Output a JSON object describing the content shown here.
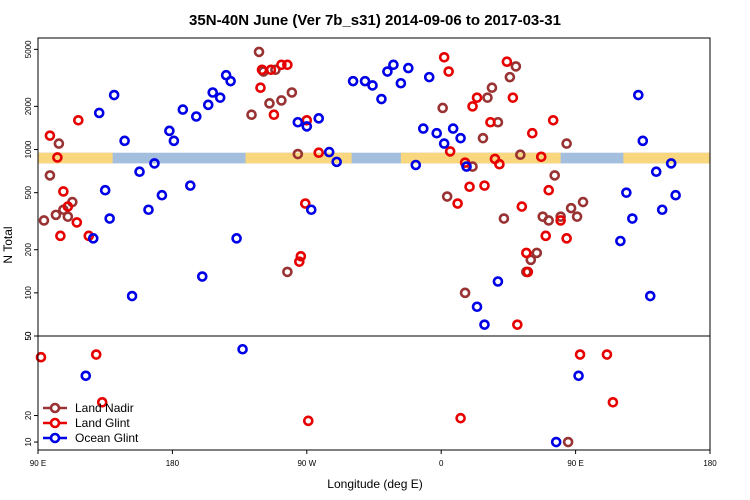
{
  "chart_data": {
    "type": "scatter",
    "title": "35N-40N June (Ver 7b_s31)   2014-09-06 to 2017-03-31",
    "xlabel": "Longitude (deg E)",
    "ylabel": "N Total",
    "x_ticks": [
      {
        "value": 90,
        "label": "90 E"
      },
      {
        "value": 180,
        "label": "180"
      },
      {
        "value": 270,
        "label": "90 W"
      },
      {
        "value": 360,
        "label": "0"
      },
      {
        "value": 450,
        "label": "90 E"
      },
      {
        "value": 540,
        "label": "180"
      }
    ],
    "xlim": [
      90,
      540
    ],
    "upper_panel": {
      "scale": "log",
      "ylim": [
        50,
        6000
      ],
      "y_ticks": [
        "50",
        "100",
        "200",
        "500",
        "1000",
        "2000",
        "5000"
      ]
    },
    "lower_panel": {
      "scale": "linear",
      "ylim": [
        7,
        50
      ],
      "y_ticks": [
        "10",
        "20",
        "50"
      ]
    },
    "land_ocean_band": {
      "land_color": "#f9d77e",
      "ocean_color": "#a4bede",
      "y_range": [
        800,
        950
      ]
    },
    "series": [
      {
        "name": "Land Nadir",
        "color": "#993333",
        "points": [
          [
            94,
            320
          ],
          [
            98,
            660
          ],
          [
            104,
            1100
          ],
          [
            107,
            380
          ],
          [
            102,
            350
          ],
          [
            110,
            340
          ],
          [
            113,
            430
          ],
          [
            233,
            1750
          ],
          [
            238,
            4800
          ],
          [
            241,
            3500
          ],
          [
            245,
            2100
          ],
          [
            249,
            3600
          ],
          [
            253,
            2200
          ],
          [
            257,
            140
          ],
          [
            260,
            2500
          ],
          [
            264,
            930
          ],
          [
            361,
            1950
          ],
          [
            364,
            470
          ],
          [
            376,
            100
          ],
          [
            381,
            760
          ],
          [
            388,
            1200
          ],
          [
            391,
            2300
          ],
          [
            394,
            2700
          ],
          [
            398,
            1550
          ],
          [
            402,
            330
          ],
          [
            406,
            3200
          ],
          [
            410,
            3800
          ],
          [
            413,
            920
          ],
          [
            417,
            140
          ],
          [
            420,
            170
          ],
          [
            424,
            190
          ],
          [
            428,
            340
          ],
          [
            432,
            320
          ],
          [
            436,
            660
          ],
          [
            440,
            340
          ],
          [
            444,
            1100
          ],
          [
            447,
            390
          ],
          [
            451,
            340
          ],
          [
            455,
            430
          ]
        ],
        "lower_points": [
          [
            445,
            10
          ]
        ]
      },
      {
        "name": "Land Glint",
        "color": "#e60000",
        "points": [
          [
            98,
            1250
          ],
          [
            103,
            880
          ],
          [
            107,
            510
          ],
          [
            110,
            400
          ],
          [
            116,
            310
          ],
          [
            105,
            250
          ],
          [
            117,
            1600
          ],
          [
            124,
            250
          ],
          [
            239,
            2700
          ],
          [
            240,
            3600
          ],
          [
            246,
            3600
          ],
          [
            248,
            1750
          ],
          [
            253,
            3900
          ],
          [
            257,
            3900
          ],
          [
            266,
            180
          ],
          [
            265,
            165
          ],
          [
            269,
            420
          ],
          [
            270,
            1600
          ],
          [
            278,
            950
          ],
          [
            362,
            4400
          ],
          [
            365,
            3500
          ],
          [
            366,
            970
          ],
          [
            371,
            420
          ],
          [
            376,
            810
          ],
          [
            379,
            550
          ],
          [
            381,
            2000
          ],
          [
            384,
            2300
          ],
          [
            389,
            560
          ],
          [
            393,
            1550
          ],
          [
            396,
            860
          ],
          [
            399,
            790
          ],
          [
            404,
            4100
          ],
          [
            408,
            2300
          ],
          [
            411,
            60
          ],
          [
            414,
            400
          ],
          [
            417,
            190
          ],
          [
            418,
            140
          ],
          [
            421,
            1300
          ],
          [
            427,
            890
          ],
          [
            430,
            250
          ],
          [
            432,
            520
          ],
          [
            435,
            1600
          ],
          [
            440,
            320
          ],
          [
            444,
            240
          ]
        ],
        "lower_points": [
          [
            92,
            42
          ],
          [
            129,
            43
          ],
          [
            133,
            25
          ],
          [
            271,
            18
          ],
          [
            373,
            19
          ],
          [
            453,
            43
          ],
          [
            471,
            43
          ],
          [
            475,
            25
          ]
        ]
      },
      {
        "name": "Ocean Glint",
        "color": "#0000e6",
        "points": [
          [
            127,
            240
          ],
          [
            131,
            1800
          ],
          [
            135,
            520
          ],
          [
            138,
            330
          ],
          [
            141,
            2400
          ],
          [
            148,
            1150
          ],
          [
            153,
            95
          ],
          [
            158,
            700
          ],
          [
            164,
            380
          ],
          [
            168,
            800
          ],
          [
            173,
            480
          ],
          [
            178,
            1350
          ],
          [
            181,
            1150
          ],
          [
            187,
            1900
          ],
          [
            192,
            560
          ],
          [
            196,
            1700
          ],
          [
            200,
            130
          ],
          [
            204,
            2050
          ],
          [
            207,
            2500
          ],
          [
            212,
            2300
          ],
          [
            216,
            3300
          ],
          [
            219,
            3000
          ],
          [
            223,
            240
          ],
          [
            264,
            1550
          ],
          [
            270,
            1450
          ],
          [
            273,
            380
          ],
          [
            278,
            1650
          ],
          [
            285,
            960
          ],
          [
            290,
            820
          ],
          [
            301,
            3000
          ],
          [
            309,
            3000
          ],
          [
            314,
            2800
          ],
          [
            320,
            2250
          ],
          [
            324,
            3500
          ],
          [
            328,
            3900
          ],
          [
            333,
            2900
          ],
          [
            338,
            3700
          ],
          [
            343,
            780
          ],
          [
            348,
            1400
          ],
          [
            352,
            3200
          ],
          [
            357,
            1300
          ],
          [
            362,
            1100
          ],
          [
            368,
            1400
          ],
          [
            373,
            1200
          ],
          [
            377,
            760
          ],
          [
            384,
            80
          ],
          [
            389,
            60
          ],
          [
            398,
            120
          ],
          [
            480,
            230
          ],
          [
            484,
            500
          ],
          [
            488,
            330
          ],
          [
            492,
            2400
          ],
          [
            495,
            1150
          ],
          [
            500,
            95
          ],
          [
            504,
            700
          ],
          [
            508,
            380
          ],
          [
            514,
            800
          ],
          [
            517,
            480
          ]
        ],
        "lower_points": [
          [
            122,
            35
          ],
          [
            227,
            45
          ],
          [
            437,
            10
          ],
          [
            452,
            35
          ]
        ]
      }
    ]
  }
}
